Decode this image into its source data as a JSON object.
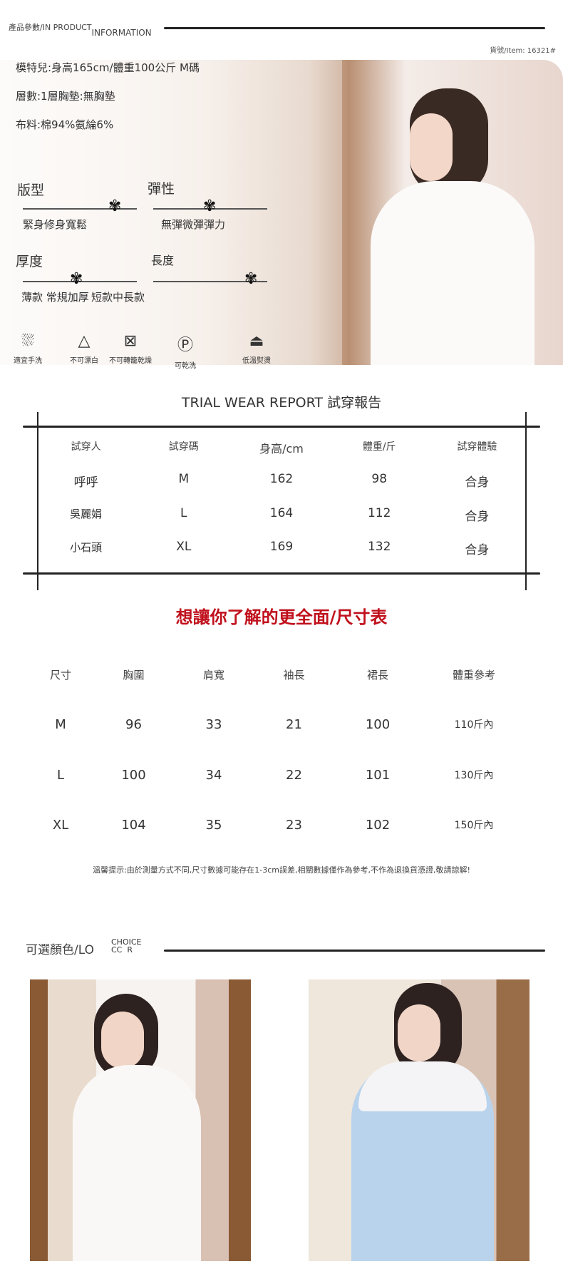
{
  "header": {
    "title": "產品參數/IN PRODUCT",
    "title_sub": "INFORMATION",
    "item_no": "貨號/Item: 16321#"
  },
  "specs": [
    "模特兒:身高165cm/體重100公斤 M碼",
    "層數:1層胸墊:無胸墊",
    "布料:棉94%氨綸6%"
  ],
  "attributes": [
    {
      "title": "版型",
      "scale": "緊身修身寬鬆",
      "selected": "寬鬆"
    },
    {
      "title": "彈性",
      "scale": "無彈微彈彈力",
      "selected": "微彈"
    },
    {
      "title": "厚度",
      "scale": "薄款 常規加厚",
      "selected": "常規"
    },
    {
      "title": "長度",
      "scale": "短款中長款",
      "selected": "長款"
    }
  ],
  "care": [
    {
      "icon": "hand-wash-icon",
      "label": "適宜手洗"
    },
    {
      "icon": "no-bleach-icon",
      "label": "不可漂白"
    },
    {
      "icon": "no-tumble-dry-icon",
      "label": "不可轉籠乾燥"
    },
    {
      "icon": "dry-clean-icon",
      "label": "可乾洗"
    },
    {
      "icon": "low-iron-icon",
      "label": "低溫熨燙"
    }
  ],
  "trial": {
    "title": "TRIAL WEAR REPORT 試穿報告",
    "headers": [
      "試穿人",
      "試穿碼",
      "身高/cm",
      "體重/斤",
      "試穿體驗"
    ],
    "rows": [
      [
        "呼呼",
        "M",
        "162",
        "98",
        "合身"
      ],
      [
        "吳麗娟",
        "L",
        "164",
        "112",
        "合身"
      ],
      [
        "小石頭",
        "XL",
        "169",
        "132",
        "合身"
      ]
    ]
  },
  "size_chart": {
    "title": "想讓你了解的更全面/尺寸表",
    "headers": [
      "尺寸",
      "胸圍",
      "肩寬",
      "袖長",
      "裙長",
      "體重參考"
    ],
    "rows": [
      [
        "M",
        "96",
        "33",
        "21",
        "100",
        "110斤內"
      ],
      [
        "L",
        "100",
        "34",
        "22",
        "101",
        "130斤內"
      ],
      [
        "XL",
        "104",
        "35",
        "23",
        "102",
        "150斤內"
      ]
    ],
    "note": "溫馨提示:由於測量方式不同,尺寸數據可能存在1-3cm誤差,相關數據僅作為參考,不作為退換貨憑證,敬請諒解!"
  },
  "colors": {
    "title": "可選顏色/LO",
    "sub_top": "CHOICE",
    "sub_bottom": "CC  R",
    "swatches": [
      "#f4f1ee",
      "#b9d3ec"
    ]
  },
  "accent": "#c0101c"
}
